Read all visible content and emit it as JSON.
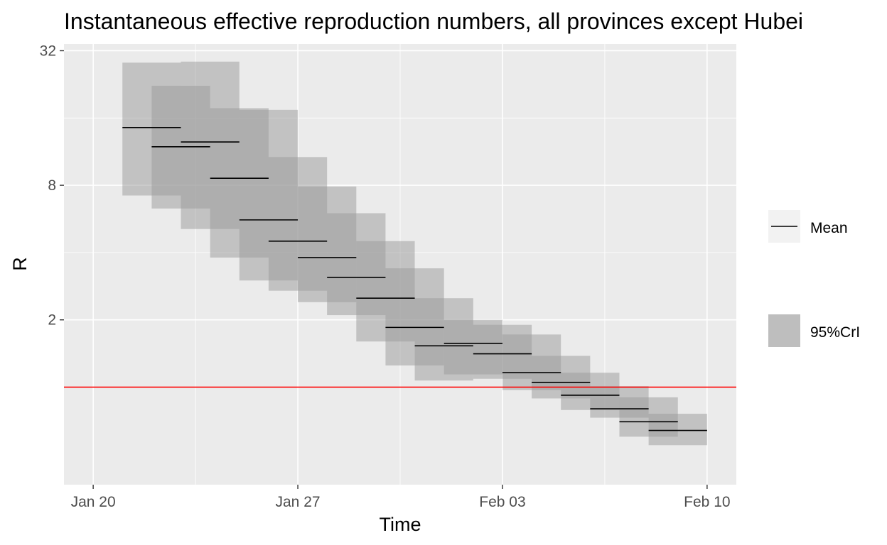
{
  "chart_data": {
    "type": "line",
    "title": "Instantaneous effective reproduction numbers, all provinces except Hubei",
    "xlabel": "Time",
    "ylabel": "R",
    "x_scale": "date",
    "y_scale": "log2",
    "xlim": [
      "2020-01-19",
      "2020-02-11"
    ],
    "ylim_log2": [
      -1.45,
      5.1
    ],
    "x_ticks": [
      {
        "date": "2020-01-20",
        "label": "Jan 20"
      },
      {
        "date": "2020-01-27",
        "label": "Jan 27"
      },
      {
        "date": "2020-02-03",
        "label": "Feb 03"
      },
      {
        "date": "2020-02-10",
        "label": "Feb 10"
      }
    ],
    "y_ticks": [
      {
        "value": 2,
        "label": "2"
      },
      {
        "value": 8,
        "label": "8"
      },
      {
        "value": 32,
        "label": "32"
      }
    ],
    "y_minor_ticks": [
      1,
      4,
      16
    ],
    "grid": true,
    "legend": {
      "position": "right",
      "entries": [
        {
          "label": "Mean",
          "kind": "line",
          "color": "#000000"
        },
        {
          "label": "95%CrI",
          "kind": "ribbon",
          "color": "#bebebe"
        }
      ]
    },
    "reference_line": {
      "y": 1,
      "color": "#ff0000"
    },
    "colors": {
      "panel": "#ebebeb",
      "grid": "#ffffff",
      "ribbon": "#999999",
      "mean": "#000000"
    },
    "windows": [
      {
        "start": "2020-01-21",
        "end": "2020-01-23",
        "mean": 14.5,
        "lower": 7.2,
        "upper": 28.3
      },
      {
        "start": "2020-01-22",
        "end": "2020-01-24",
        "mean": 11.9,
        "lower": 6.3,
        "upper": 22.3
      },
      {
        "start": "2020-01-23",
        "end": "2020-01-25",
        "mean": 12.5,
        "lower": 5.1,
        "upper": 28.6
      },
      {
        "start": "2020-01-24",
        "end": "2020-01-26",
        "mean": 8.6,
        "lower": 3.8,
        "upper": 17.7
      },
      {
        "start": "2020-01-25",
        "end": "2020-01-27",
        "mean": 5.6,
        "lower": 3.0,
        "upper": 17.4
      },
      {
        "start": "2020-01-26",
        "end": "2020-01-28",
        "mean": 4.5,
        "lower": 2.7,
        "upper": 10.7
      },
      {
        "start": "2020-01-27",
        "end": "2020-01-29",
        "mean": 3.8,
        "lower": 2.4,
        "upper": 7.9
      },
      {
        "start": "2020-01-28",
        "end": "2020-01-30",
        "mean": 3.1,
        "lower": 2.1,
        "upper": 6.0
      },
      {
        "start": "2020-01-29",
        "end": "2020-01-31",
        "mean": 2.5,
        "lower": 1.6,
        "upper": 4.5
      },
      {
        "start": "2020-01-30",
        "end": "2020-02-01",
        "mean": 1.85,
        "lower": 1.25,
        "upper": 3.4
      },
      {
        "start": "2020-01-31",
        "end": "2020-02-02",
        "mean": 1.53,
        "lower": 1.07,
        "upper": 2.5
      },
      {
        "start": "2020-02-01",
        "end": "2020-02-03",
        "mean": 1.57,
        "lower": 1.14,
        "upper": 2.0
      },
      {
        "start": "2020-02-02",
        "end": "2020-02-04",
        "mean": 1.41,
        "lower": 1.09,
        "upper": 1.9
      },
      {
        "start": "2020-02-03",
        "end": "2020-02-05",
        "mean": 1.16,
        "lower": 0.97,
        "upper": 1.72
      },
      {
        "start": "2020-02-04",
        "end": "2020-02-06",
        "mean": 1.05,
        "lower": 0.89,
        "upper": 1.38
      },
      {
        "start": "2020-02-05",
        "end": "2020-02-07",
        "mean": 0.92,
        "lower": 0.79,
        "upper": 1.16
      },
      {
        "start": "2020-02-06",
        "end": "2020-02-08",
        "mean": 0.8,
        "lower": 0.73,
        "upper": 1.01
      },
      {
        "start": "2020-02-07",
        "end": "2020-02-09",
        "mean": 0.7,
        "lower": 0.6,
        "upper": 0.9
      },
      {
        "start": "2020-02-08",
        "end": "2020-02-10",
        "mean": 0.64,
        "lower": 0.55,
        "upper": 0.76
      }
    ]
  }
}
